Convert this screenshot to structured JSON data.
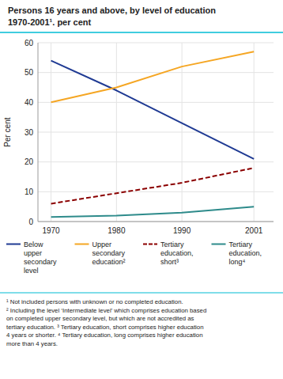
{
  "chart_data": {
    "type": "line",
    "title": "Persons 16 years and above, by level of education",
    "subtitle": "1970-2001¹. per cent",
    "y_label": "Per cent",
    "x": [
      1970,
      1980,
      1990,
      2001
    ],
    "xlim": [
      1968,
      2004
    ],
    "xticks": [
      1970,
      1980,
      1990,
      2001
    ],
    "ylim": [
      0,
      60
    ],
    "yticks": [
      0,
      10,
      20,
      30,
      40,
      50,
      60
    ],
    "grid": true,
    "series": [
      {
        "name": "Below\nupper\nsecondary\nlevel",
        "color": "#1f3a93",
        "line_style": "solid",
        "values": [
          54,
          44,
          33,
          21
        ]
      },
      {
        "name": "Upper\nsecondary\neducation²",
        "color": "#f5a623",
        "line_style": "solid",
        "values": [
          40,
          45,
          52,
          57
        ]
      },
      {
        "name": "Tertiary\neducation,\nshort³",
        "color": "#8b0000",
        "line_style": "dashed",
        "values": [
          6,
          9.5,
          13,
          18
        ]
      },
      {
        "name": "Tertiary\neducation,\nlong⁴",
        "color": "#2e8b8b",
        "line_style": "solid",
        "values": [
          1.5,
          2,
          3,
          5
        ]
      }
    ],
    "footnote": "¹ Not included persons with unknown or no completed education.\n² Including the level ‘Intermediate level’ which comprises education based\non completed upper secondary level, but which are not accredited as\ntertiary education. ³ Tertiary education, short comprises higher education\n4 years or shorter. ⁴ Tertiary education, long comprises higher education\nmore than 4 years."
  }
}
